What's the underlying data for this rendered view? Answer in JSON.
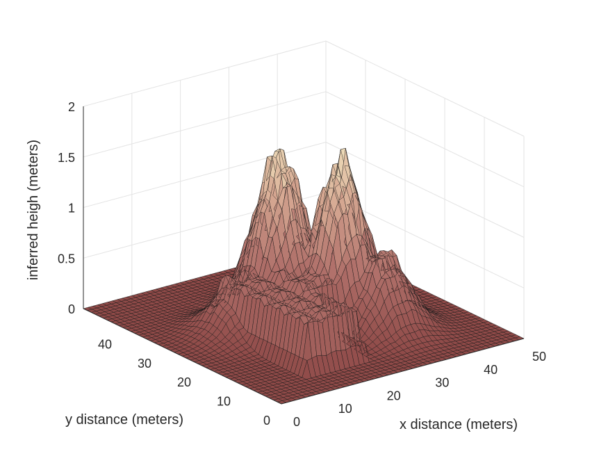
{
  "chart_data": {
    "type": "surface",
    "title": "",
    "xlabel": "x distance (meters)",
    "ylabel": "y distance (meters)",
    "zlabel": "inferred heigh (meters)",
    "xlim": [
      0,
      50
    ],
    "ylim": [
      0,
      50
    ],
    "zlim": [
      0,
      2
    ],
    "x_ticks": [
      "0",
      "10",
      "20",
      "30",
      "40",
      "50"
    ],
    "y_ticks": [
      "0",
      "10",
      "20",
      "30",
      "40"
    ],
    "z_ticks": [
      "0",
      "0.5",
      "1",
      "1.5",
      "2"
    ],
    "grid": true,
    "grid_points": 50,
    "colormap": [
      "#8f4a48",
      "#b0706a",
      "#d6a892",
      "#f7f0c8"
    ],
    "features": [
      {
        "shape": "plateau",
        "x": [
          12,
          22
        ],
        "y": [
          8,
          30
        ],
        "height": 0.55
      },
      {
        "shape": "plateau",
        "x": [
          20,
          38
        ],
        "y": [
          18,
          34
        ],
        "height": 0.6
      },
      {
        "shape": "peak",
        "x": 25,
        "y": 31,
        "height": 1.75
      },
      {
        "shape": "peak",
        "x": 31,
        "y": 23,
        "height": 1.75
      },
      {
        "shape": "peak",
        "x": 34,
        "y": 16,
        "height": 0.85
      },
      {
        "shape": "peak",
        "x": 14,
        "y": 28,
        "height": 0.55
      }
    ]
  }
}
